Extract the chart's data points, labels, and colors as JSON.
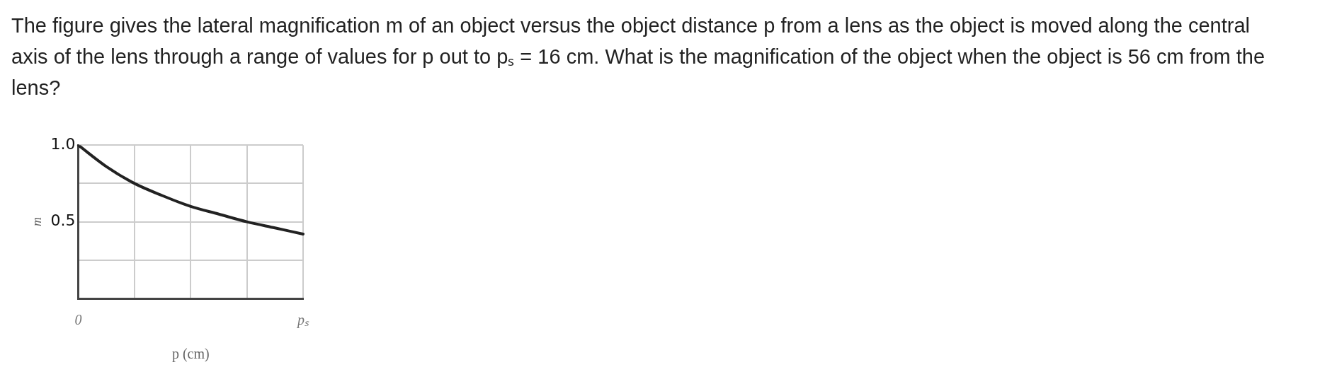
{
  "chart_data": {
    "type": "line",
    "title": "The figure gives the lateral magnification m of an object versus the object distance p from a lens as the object is moved along the central axis of the lens through a range of values for p out to pₛ = 16 cm. What is the magnification of the object when the object is 56 cm from the lens?",
    "xlabel": "p (cm)",
    "ylabel": "m",
    "categories": [
      "0",
      null,
      null,
      null,
      null,
      null,
      null,
      null,
      "pₛ"
    ],
    "series": [
      {
        "color": "#222222",
        "values": [
          1.0,
          0.86,
          0.75,
          0.67,
          0.6,
          0.55,
          0.5,
          0.46,
          0.42
        ]
      }
    ],
    "ylim": [
      0,
      1
    ],
    "yticks": [
      {
        "value": 0,
        "label": null
      },
      {
        "value": 0.25,
        "label": null
      },
      {
        "value": 0.5,
        "label": "0.5"
      },
      {
        "value": 0.75,
        "label": null
      },
      {
        "value": 1,
        "label": "1.0"
      }
    ],
    "grid": true,
    "legend": false,
    "marker": "none",
    "line_style": "solid"
  }
}
